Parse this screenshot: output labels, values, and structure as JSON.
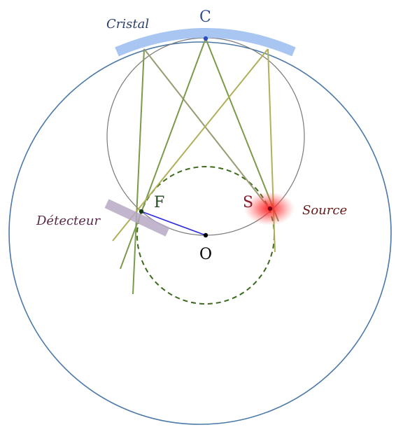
{
  "labels": {
    "crystal": "Cristal",
    "point_c": "C",
    "point_f": "F",
    "point_s": "S",
    "point_o": "O",
    "detector": "Détecteur",
    "source": "Source"
  },
  "colors": {
    "large_circle": "#4a78a8",
    "rowland_circle": "#7a7a7a",
    "dashed_circle": "#3d6a1e",
    "crystal": "#a9c6f2",
    "detector": "#b7a8c6",
    "source_glow": "#ff2a2a",
    "segment_of": "#2a2ae0",
    "ray_green": "#7a9a4c",
    "ray_olive": "#b0b05a",
    "ray_grey": "#9a9a72",
    "label_crystal": "#2b3d6b",
    "label_detector": "#5a2a4a",
    "label_source": "#6b1a1a",
    "label_point_c": "#2f4f8f",
    "label_point_f": "#1f4a1f",
    "label_point_s": "#8a1a2a",
    "label_point_o": "#000000"
  }
}
